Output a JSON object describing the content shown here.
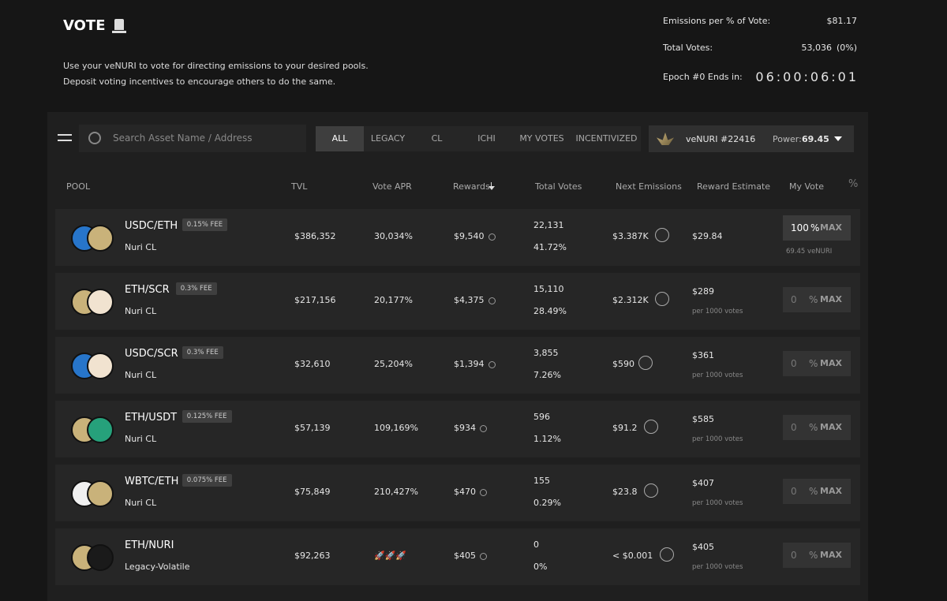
{
  "header": {
    "title": "VOTE",
    "description": [
      "Use your veNURI to vote for directing emissions to your desired pools.",
      "Deposit voting incentives to encourage others to do the same."
    ]
  },
  "stats": [
    {
      "label": "Emissions per % of Vote:",
      "value": "$81.17"
    },
    {
      "label": "Total Votes:",
      "value": "53,036",
      "extra": "(0%)"
    },
    {
      "label": "Epoch #0 Ends in:",
      "value": "06:00:06:01"
    }
  ],
  "search_placeholder": "Search Asset Name / Address",
  "tabs": [
    "ALL",
    "LEGACY",
    "CL",
    "ICHI",
    "MY VOTES",
    "INCENTIVIZED"
  ],
  "account": {
    "name": "veNURI",
    "id": "#22416",
    "power_label": "Power:",
    "power": "69.45"
  },
  "columns": [
    "POOL",
    "TVL",
    "Vote APR",
    "Rewards",
    "Total Votes",
    "Next Emissions",
    "Reward Estimate",
    "My Vote",
    "%"
  ],
  "vote_input": {
    "unit": "%",
    "button": "MAX"
  },
  "rows": [
    {
      "pool": "USDC/ETH",
      "fee": "0.15% FEE",
      "type": "Nuri CL",
      "tvl": "$386,352",
      "apr": "30,034%",
      "rewards": "$9,540",
      "votes": "22,131",
      "share": "41.72%",
      "emissions": "$3.387K",
      "estimate": "$29.84",
      "my_vote": "100",
      "note": "69.45 veNURI"
    },
    {
      "pool": "ETH/SCR",
      "fee": "0.3% FEE",
      "type": "Nuri CL",
      "tvl": "$217,156",
      "apr": "20,177%",
      "rewards": "$4,375",
      "votes": "15,110",
      "share": "28.49%",
      "emissions": "$2.312K",
      "estimate": "$289",
      "estimate_note": "per 1000 votes",
      "my_vote": "0"
    },
    {
      "pool": "USDC/SCR",
      "fee": "0.3% FEE",
      "type": "Nuri CL",
      "tvl": "$32,610",
      "apr": "25,204%",
      "rewards": "$1,394",
      "votes": "3,855",
      "share": "7.26%",
      "emissions": "$590",
      "estimate": "$361",
      "estimate_note": "per 1000 votes",
      "my_vote": "0"
    },
    {
      "pool": "ETH/USDT",
      "fee": "0.125% FEE",
      "type": "Nuri CL",
      "tvl": "$57,139",
      "apr": "109,169%",
      "rewards": "$934",
      "votes": "596",
      "share": "1.12%",
      "emissions": "$91.2",
      "estimate": "$585",
      "estimate_note": "per 1000 votes",
      "my_vote": "0"
    },
    {
      "pool": "WBTC/ETH",
      "fee": "0.075% FEE",
      "type": "Nuri CL",
      "tvl": "$75,849",
      "apr": "210,427%",
      "rewards": "$470",
      "votes": "155",
      "share": "0.29%",
      "emissions": "$23.8",
      "estimate": "$407",
      "estimate_note": "per 1000 votes",
      "my_vote": "0"
    },
    {
      "pool": "ETH/NURI",
      "type": "Legacy-Volatile",
      "tvl": "$92,263",
      "apr": "🚀🚀🚀",
      "rewards": "$405",
      "votes": "0",
      "share": "0%",
      "emissions": "< $0.001",
      "estimate": "$405",
      "estimate_note": "per 1000 votes",
      "my_vote": "0"
    }
  ]
}
